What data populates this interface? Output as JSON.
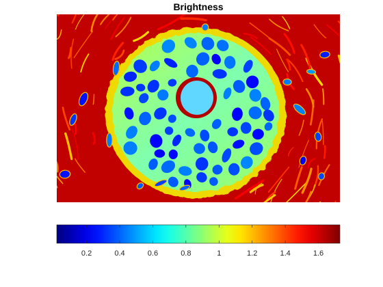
{
  "chart_data": {
    "type": "heatmap",
    "title": "Brightness",
    "xlabel": "",
    "ylabel": "",
    "colormap": "jet",
    "clim": [
      0.02,
      1.73
    ],
    "colorbar": {
      "orientation": "horizontal",
      "location": "bottom",
      "ticks": [
        0.2,
        0.4,
        0.6,
        0.8,
        1,
        1.2,
        1.4,
        1.6
      ],
      "tick_labels": [
        "0.2",
        "0.4",
        "0.6",
        "0.8",
        "1",
        "1.2",
        "1.4",
        "1.6"
      ]
    },
    "axes_visible": false,
    "description_regions": {
      "background_value": 1.65,
      "ring_value": 0.85,
      "nuclei_value": 0.35,
      "center_value": 0.6
    }
  },
  "colors": {
    "jet_dark_blue": "#00008f",
    "jet_blue": "#0000ff",
    "jet_cyan": "#00ffff",
    "jet_yellow": "#ffff00",
    "jet_red": "#ff0000",
    "jet_dark_red": "#800000"
  }
}
